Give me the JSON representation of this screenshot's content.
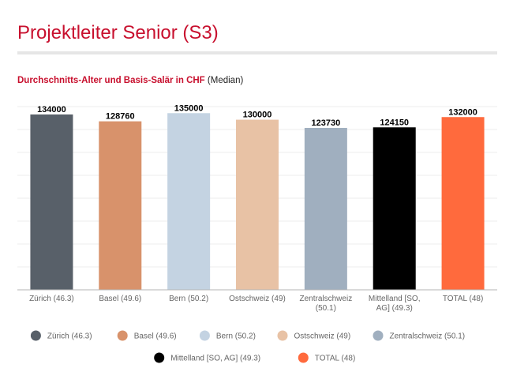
{
  "page": {
    "title": "Projektleiter Senior (S3)",
    "subtitle_highlight": "Durchschnitts-Alter und Basis-Salär in CHF",
    "subtitle_rest": " (Median)"
  },
  "chart_data": {
    "type": "bar",
    "categories": [
      "Zürich (46.3)",
      "Basel (49.6)",
      "Bern (50.2)",
      "Ostschweiz (49)",
      "Zentralschweiz (50.1)",
      "Mittelland [SO, AG] (49.3)",
      "TOTAL (48)"
    ],
    "tick_lines": [
      [
        "Zürich (46.3)"
      ],
      [
        "Basel (49.6)"
      ],
      [
        "Bern (50.2)"
      ],
      [
        "Ostschweiz (49)"
      ],
      [
        "Zentralschweiz",
        "(50.1)"
      ],
      [
        "Mittelland [SO,",
        "AG] (49.3)"
      ],
      [
        "TOTAL (48)"
      ]
    ],
    "values": [
      134000,
      128760,
      135000,
      130000,
      123730,
      124150,
      132000
    ],
    "value_labels": [
      "134000",
      "128760",
      "135000",
      "130000",
      "123730",
      "124150",
      "132000"
    ],
    "colors": [
      "#586069",
      "#d8926b",
      "#c4d3e2",
      "#e8c2a5",
      "#a0afbf",
      "#000000",
      "#ff6a3d"
    ],
    "ylim": [
      0,
      140000
    ],
    "grid": true,
    "legend_position": "bottom"
  }
}
